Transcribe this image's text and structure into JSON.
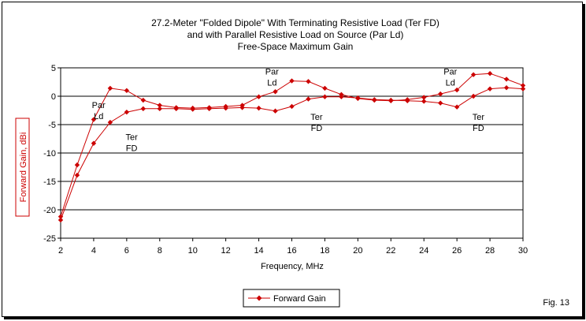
{
  "chart_data": {
    "type": "line",
    "title": [
      "27.2-Meter \"Folded Dipole\" With Terminating Resistive Load (Ter FD)",
      "and with Parallel Resistive Load on Source (Par Ld)",
      "Free-Space Maximum Gain"
    ],
    "xlabel": "Frequency, MHz",
    "ylabel": "Forward Gain, dBi",
    "xlim": [
      2,
      30
    ],
    "ylim": [
      -25,
      5
    ],
    "xticks": [
      2,
      4,
      6,
      8,
      10,
      12,
      14,
      16,
      18,
      20,
      22,
      24,
      26,
      28,
      30
    ],
    "yticks": [
      5,
      0,
      -5,
      -10,
      -15,
      -20,
      -25
    ],
    "grid": "horizontal",
    "legend_position": "bottom-center",
    "series": [
      {
        "name": "Forward Gain",
        "label": "Par Ld",
        "color": "#cc0000",
        "x": [
          2,
          3,
          4,
          5,
          6,
          7,
          8,
          9,
          10,
          11,
          12,
          13,
          14,
          15,
          16,
          17,
          18,
          19,
          20,
          21,
          22,
          23,
          24,
          25,
          26,
          27,
          28,
          29,
          30
        ],
        "y": [
          -21.2,
          -12.1,
          -4.1,
          1.4,
          1.0,
          -0.7,
          -1.6,
          -2.0,
          -2.1,
          -2.0,
          -1.8,
          -1.6,
          -0.1,
          0.8,
          2.7,
          2.6,
          1.4,
          0.3,
          -0.4,
          -0.7,
          -0.8,
          -0.6,
          -0.2,
          0.4,
          1.1,
          3.8,
          4.0,
          3.0,
          1.9
        ]
      },
      {
        "name": "Forward Gain",
        "label": "Ter FD",
        "color": "#cc0000",
        "x": [
          2,
          3,
          4,
          5,
          6,
          7,
          8,
          9,
          10,
          11,
          12,
          13,
          14,
          15,
          16,
          17,
          18,
          19,
          20,
          21,
          22,
          23,
          24,
          25,
          26,
          27,
          28,
          29,
          30
        ],
        "y": [
          -21.8,
          -13.9,
          -8.3,
          -4.6,
          -2.8,
          -2.2,
          -2.2,
          -2.2,
          -2.3,
          -2.2,
          -2.1,
          -2.0,
          -2.1,
          -2.6,
          -1.8,
          -0.5,
          -0.1,
          -0.1,
          -0.3,
          -0.6,
          -0.7,
          -0.8,
          -0.9,
          -1.2,
          -1.9,
          0.0,
          1.3,
          1.5,
          1.3
        ]
      }
    ],
    "annotations": [
      {
        "lines": [
          "Par",
          "Ld"
        ],
        "x": 4.3,
        "y": -2.1
      },
      {
        "lines": [
          "Ter",
          "FD"
        ],
        "x": 6.3,
        "y": -7.7
      },
      {
        "lines": [
          "Par",
          "Ld"
        ],
        "x": 14.8,
        "y": 3.8
      },
      {
        "lines": [
          "Ter",
          "FD"
        ],
        "x": 17.5,
        "y": -4.2
      },
      {
        "lines": [
          "Par",
          "Ld"
        ],
        "x": 25.6,
        "y": 3.8
      },
      {
        "lines": [
          "Ter",
          "FD"
        ],
        "x": 27.3,
        "y": -4.2
      }
    ],
    "legend": {
      "label": "Forward Gain"
    },
    "footnote": "Fig. 13"
  }
}
